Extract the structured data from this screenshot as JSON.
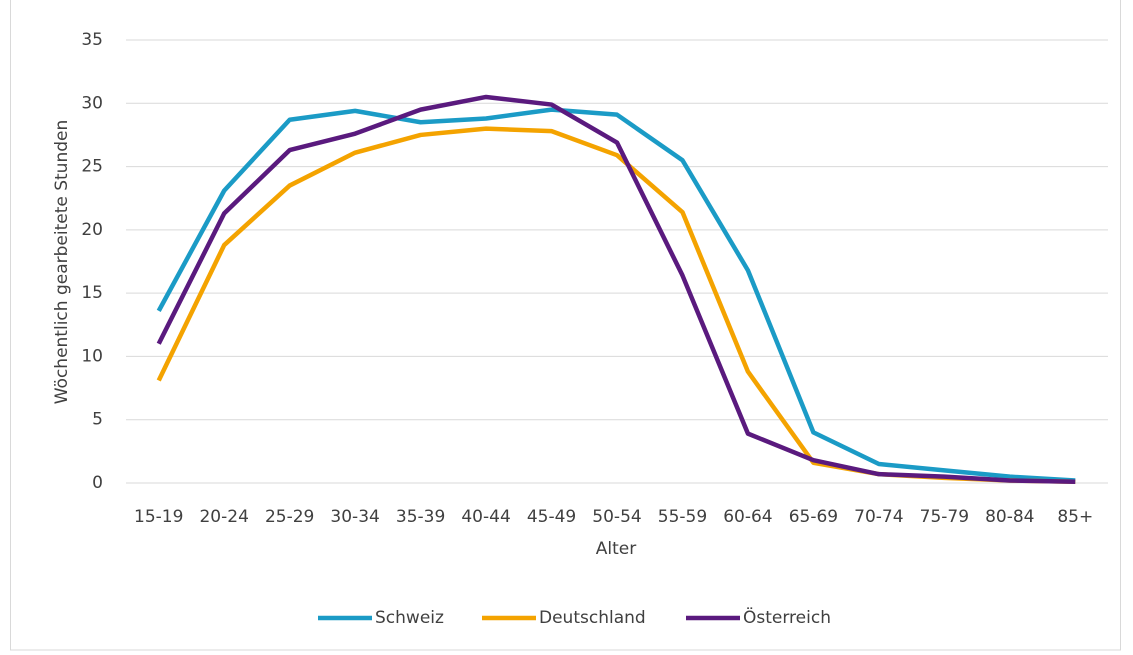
{
  "chart_data": {
    "type": "line",
    "x_label": "Alter",
    "y_label": "Wöchentlich gearbeitete Stunden",
    "categories": [
      "15-19",
      "20-24",
      "25-29",
      "30-34",
      "35-39",
      "40-44",
      "45-49",
      "50-54",
      "55-59",
      "60-64",
      "65-69",
      "70-74",
      "75-79",
      "80-84",
      "85+"
    ],
    "series": [
      {
        "name": "Schweiz",
        "color": "#1b9bc6",
        "values": [
          13.6,
          23.1,
          28.7,
          29.4,
          28.5,
          28.8,
          29.5,
          29.1,
          25.5,
          16.8,
          4.0,
          1.5,
          1.0,
          0.5,
          0.2
        ]
      },
      {
        "name": "Deutschland",
        "color": "#f4a300",
        "values": [
          8.1,
          18.8,
          23.5,
          26.1,
          27.5,
          28.0,
          27.8,
          25.9,
          21.4,
          8.8,
          1.6,
          0.7,
          0.4,
          0.2,
          0.1
        ]
      },
      {
        "name": "Österreich",
        "color": "#5a1a7e",
        "values": [
          11.0,
          21.3,
          26.3,
          27.6,
          29.5,
          30.5,
          29.9,
          26.9,
          16.4,
          3.9,
          1.8,
          0.7,
          0.5,
          0.2,
          0.1
        ]
      }
    ],
    "ylim": [
      0,
      35
    ],
    "yticks": [
      0,
      5,
      10,
      15,
      20,
      25,
      30,
      35
    ],
    "grid": true,
    "legend": "bottom"
  }
}
